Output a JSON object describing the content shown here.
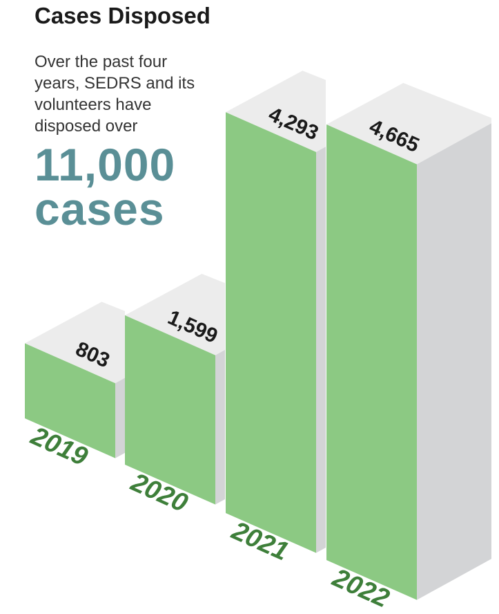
{
  "chart_data": {
    "type": "bar",
    "title": "Cases Disposed",
    "subtitle": "Over the past four years, SEDRS and its volunteers have disposed over",
    "highlight": "11,000 cases",
    "categories": [
      "2019",
      "2020",
      "2021",
      "2022"
    ],
    "values": [
      803,
      1599,
      4293,
      4665
    ],
    "value_labels": [
      "803",
      "1,599",
      "4,293",
      "4,665"
    ],
    "color": "#8cc983"
  }
}
